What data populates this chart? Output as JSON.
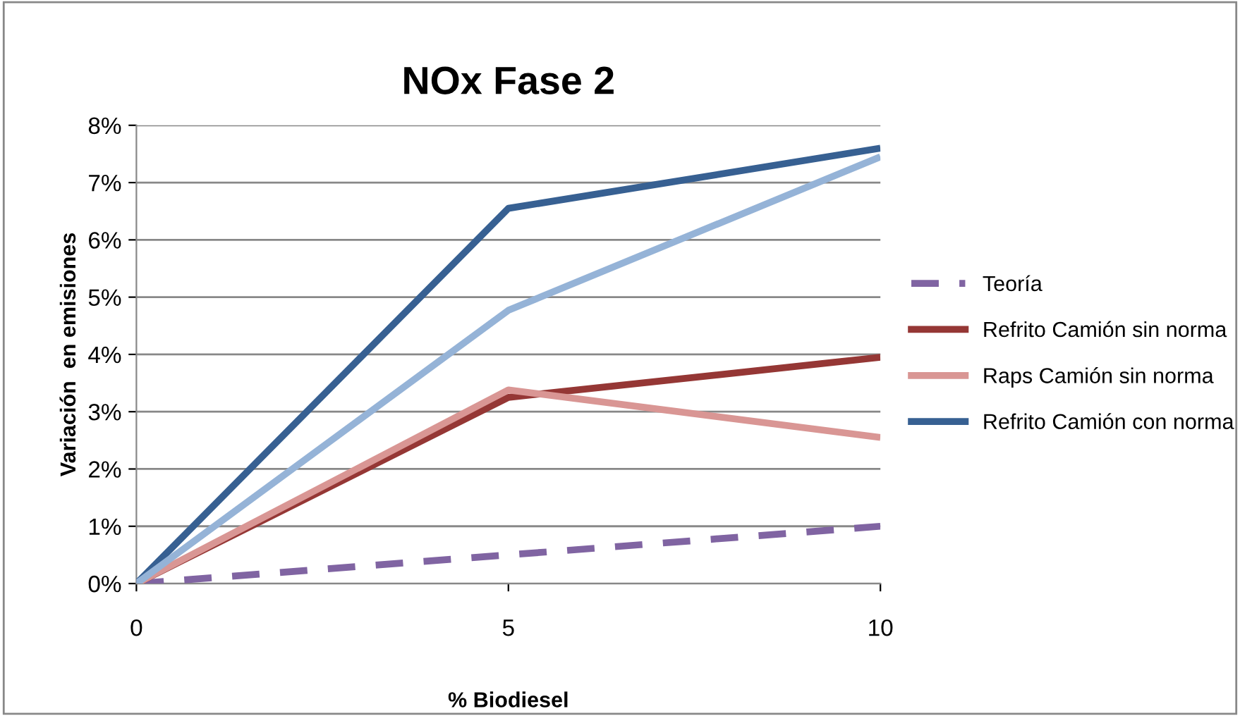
{
  "chart_data": {
    "type": "line",
    "title": "NOx Fase 2",
    "xlabel": "% Biodiesel",
    "ylabel": "Variación  en emisiones",
    "x": [
      0,
      5,
      10
    ],
    "series": [
      {
        "name": "Teoría",
        "color": "#8064a2",
        "values": [
          0,
          0.5,
          1.0
        ],
        "line_style": "dashed"
      },
      {
        "name": "Refrito Camión sin norma",
        "color": "#953735",
        "values": [
          0,
          3.25,
          3.95
        ]
      },
      {
        "name": "Raps Camión sin norma",
        "color": "#d99694",
        "values": [
          0,
          3.38,
          2.55
        ]
      },
      {
        "name": "Refrito Camión con norma",
        "color": "#376092",
        "values": [
          0,
          6.55,
          7.6
        ]
      },
      {
        "color": "#95b3d7",
        "values": [
          0,
          4.77,
          7.45
        ]
      }
    ],
    "xlim": [
      0,
      10
    ],
    "xticks": [
      0,
      5,
      10
    ],
    "ylim": [
      0,
      8
    ],
    "yticks": [
      {
        "value": 0,
        "label": "0%"
      },
      {
        "value": 1,
        "label": "1%"
      },
      {
        "value": 2,
        "label": "2%"
      },
      {
        "value": 3,
        "label": "3%"
      },
      {
        "value": 4,
        "label": "4%"
      },
      {
        "value": 5,
        "label": "5%"
      },
      {
        "value": 6,
        "label": "6%"
      },
      {
        "value": 7,
        "label": "7%"
      },
      {
        "value": 8,
        "label": "8%"
      }
    ],
    "grid": "y",
    "legend": "right",
    "marker": "none",
    "line_style": "solid"
  }
}
